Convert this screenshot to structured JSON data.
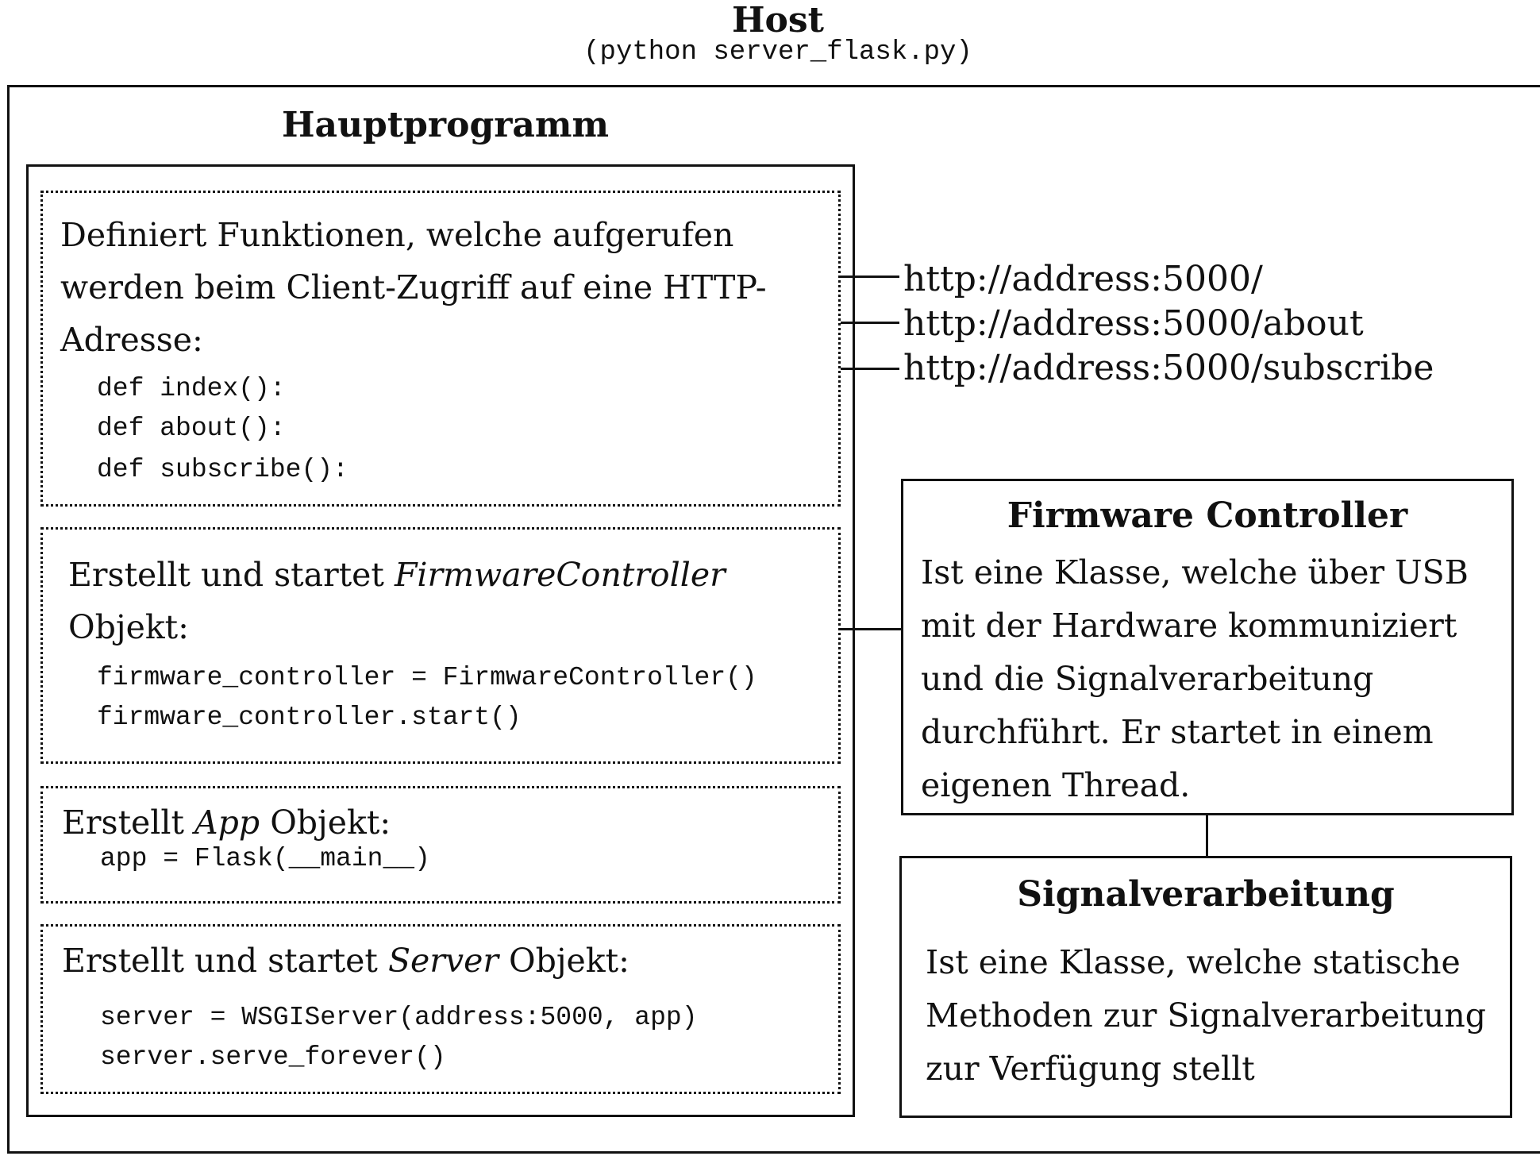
{
  "host": {
    "title": "Host",
    "command": "(python server_flask.py)"
  },
  "main_program": {
    "title": "Hauptprogramm",
    "routes_box": {
      "description": "Definiert Funktionen, welche aufgerufen werden beim Client-Zugriff auf eine HTTP-Adresse:",
      "code": [
        "def index():",
        "def about():",
        "def subscribe():"
      ]
    },
    "controller_box": {
      "prefix": "Erstellt und startet ",
      "object": "FirmwareController",
      "suffix": "Objekt:",
      "code": [
        "firmware_controller = FirmwareController()",
        "firmware_controller.start()"
      ]
    },
    "app_box": {
      "prefix": "Erstellt ",
      "object": "App",
      "suffix": " Objekt:",
      "code": [
        "app = Flask(__main__)"
      ]
    },
    "server_box": {
      "prefix": "Erstellt und startet ",
      "object": "Server",
      "suffix": " Objekt:",
      "code": [
        "server = WSGIServer(address:5000, app)",
        "server.serve_forever()"
      ]
    }
  },
  "urls": [
    "http://address:5000/",
    "http://address:5000/about",
    "http://address:5000/subscribe"
  ],
  "firmware_controller": {
    "title": "Firmware Controller",
    "description": "Ist eine Klasse, welche über USB mit der Hardware kommuniziert und die Signalverarbeitung durchführt. Er startet in einem eigenen Thread."
  },
  "signal_processing": {
    "title": "Signalverarbeitung",
    "description": "Ist eine Klasse, welche statische Methoden zur Signalverarbeitung zur Verfügung stellt"
  }
}
